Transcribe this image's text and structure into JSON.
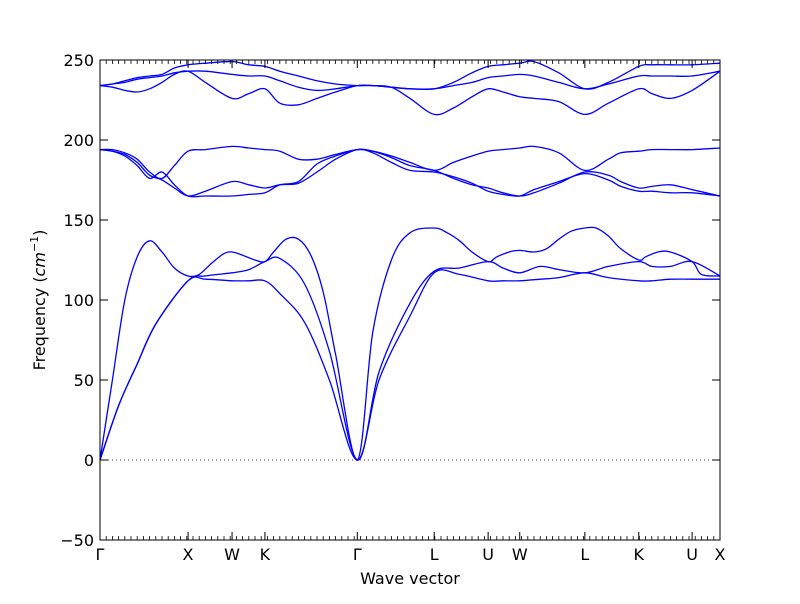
{
  "chart_data": {
    "type": "line",
    "title": "",
    "xlabel": "Wave vector",
    "ylabel": "Frequency",
    "ylabel_unit": "cm",
    "ylabel_unit_exp": "−1",
    "ylim": [
      -50,
      250
    ],
    "yticks": [
      -50,
      0,
      50,
      100,
      150,
      200,
      250
    ],
    "xlim": [
      0,
      100
    ],
    "xticks": [
      {
        "label": "Γ",
        "x": 0
      },
      {
        "label": "X",
        "x": 14.2
      },
      {
        "label": "W",
        "x": 21.3
      },
      {
        "label": "K",
        "x": 26.6
      },
      {
        "label": "Γ",
        "x": 41.5
      },
      {
        "label": "L",
        "x": 53.9
      },
      {
        "label": "U",
        "x": 62.6
      },
      {
        "label": "W",
        "x": 67.7
      },
      {
        "label": "L",
        "x": 78.2
      },
      {
        "label": "K",
        "x": 86.9
      },
      {
        "label": "U",
        "x": 95.5
      },
      {
        "label": "X",
        "x": 100
      }
    ],
    "grid": false,
    "zero_line": "dotted",
    "line_color": "#0000ff",
    "series": [
      {
        "x": [
          0,
          3,
          6,
          9,
          14.2,
          17,
          21.3,
          24,
          26.6,
          29,
          33,
          37,
          41.5,
          45,
          50,
          53.9,
          58,
          62.6,
          65,
          67.7,
          71,
          74,
          78.2,
          82,
          86.9,
          89,
          92,
          95.5,
          100
        ],
        "y": [
          0,
          34,
          60,
          85,
          112,
          113,
          112,
          112,
          112,
          104,
          86,
          50,
          0,
          50,
          90,
          117,
          116,
          112,
          112,
          112,
          113,
          114,
          117,
          114,
          112,
          112,
          113,
          113,
          113
        ]
      },
      {
        "x": [
          0,
          3,
          6,
          9,
          14.2,
          17,
          21.3,
          24,
          26.6,
          29,
          33,
          37,
          41.5,
          45,
          50,
          53.9,
          58,
          62.6,
          65,
          67.7,
          71,
          74,
          78.2,
          82,
          86.9,
          89,
          92,
          95.5,
          100
        ],
        "y": [
          0,
          34,
          60,
          85,
          112,
          115,
          117,
          119,
          124,
          126,
          110,
          68,
          0,
          55,
          98,
          118,
          120,
          124,
          120,
          117,
          121,
          119,
          117,
          121,
          124,
          121,
          121,
          124,
          115
        ]
      },
      {
        "x": [
          0,
          2,
          4,
          6,
          8,
          10,
          12,
          14.2,
          16,
          18,
          20,
          21.3,
          23,
          25,
          26.6,
          28,
          30,
          32,
          34,
          36,
          38,
          41.5,
          44,
          47,
          50,
          53.9,
          56,
          58,
          60,
          62.6,
          64,
          66,
          67.7,
          70,
          72,
          74,
          76,
          78.2,
          80,
          82,
          84,
          86.9,
          88,
          90,
          92,
          95.5,
          97,
          100
        ],
        "y": [
          0,
          50,
          100,
          127,
          137,
          130,
          120,
          115,
          116,
          123,
          129,
          130,
          128,
          125,
          124,
          130,
          138,
          138,
          128,
          105,
          66,
          0,
          80,
          125,
          142,
          145,
          142,
          137,
          130,
          124,
          127,
          130,
          131,
          130,
          132,
          138,
          143,
          145,
          145,
          140,
          132,
          125,
          127,
          130,
          130,
          124,
          116,
          115
        ]
      },
      {
        "x": [
          0,
          2,
          4,
          6,
          8,
          10,
          12,
          14.2,
          17,
          21.3,
          24,
          26.6,
          29,
          32,
          35,
          38,
          41.5,
          44,
          47,
          50,
          53.9,
          57,
          60,
          62.6,
          65,
          67.7,
          70,
          74,
          78.2,
          82,
          84,
          86.9,
          89,
          92,
          95.5,
          100
        ],
        "y": [
          194,
          193,
          190,
          184,
          176,
          180,
          172,
          165,
          165,
          165,
          166,
          167,
          172,
          174,
          185,
          190,
          194,
          193,
          189,
          184,
          181,
          176,
          172,
          170,
          167,
          165,
          167,
          173,
          180,
          178,
          174,
          170,
          171,
          172,
          169,
          165
        ]
      },
      {
        "x": [
          0,
          2,
          4,
          6,
          8,
          10,
          12,
          14.2,
          17,
          21.3,
          24,
          26.6,
          29,
          32,
          35,
          38,
          41.5,
          44,
          47,
          50,
          53.9,
          57,
          60,
          62.6,
          65,
          67.7,
          70,
          74,
          78.2,
          82,
          84,
          86.9,
          89,
          92,
          95.5,
          100
        ],
        "y": [
          194,
          193,
          191,
          186,
          178,
          175,
          170,
          165,
          168,
          174,
          172,
          170,
          172,
          173,
          180,
          188,
          194,
          192,
          186,
          181,
          180,
          177,
          173,
          168,
          166,
          165,
          169,
          174,
          179,
          175,
          171,
          168,
          168,
          167,
          167,
          165
        ]
      },
      {
        "x": [
          0,
          2,
          4,
          6,
          8,
          10,
          12,
          14.2,
          17,
          21.3,
          24,
          26.6,
          29,
          32,
          35,
          38,
          41.5,
          44,
          47,
          50,
          53.9,
          57,
          60,
          62.6,
          65,
          67.7,
          70,
          74,
          78.2,
          82,
          84,
          86.9,
          89,
          92,
          95.5,
          100
        ],
        "y": [
          194,
          194,
          192,
          188,
          180,
          176,
          184,
          193,
          194,
          196,
          195,
          194,
          193,
          188,
          188,
          191,
          194,
          193,
          190,
          186,
          181,
          186,
          190,
          193,
          194,
          195,
          196,
          192,
          181,
          188,
          192,
          193,
          194,
          194,
          194,
          195
        ]
      },
      {
        "x": [
          0,
          2,
          4,
          6,
          8,
          10,
          12,
          14.2,
          17,
          21.3,
          24,
          26.6,
          29,
          32,
          35,
          38,
          41.5,
          44,
          47,
          50,
          53.9,
          57,
          60,
          62.6,
          65,
          67.7,
          70,
          74,
          78.2,
          82,
          86.9,
          89,
          92,
          95.5,
          100
        ],
        "y": [
          234,
          233,
          231,
          230,
          232,
          236,
          241,
          243,
          236,
          226,
          229,
          232,
          223,
          222,
          226,
          230,
          234,
          234,
          233,
          226,
          216,
          220,
          227,
          232,
          230,
          227,
          226,
          224,
          216,
          223,
          232,
          229,
          226,
          231,
          243
        ]
      },
      {
        "x": [
          0,
          2,
          4,
          6,
          8,
          10,
          12,
          14.2,
          17,
          21.3,
          24,
          26.6,
          29,
          32,
          35,
          38,
          41.5,
          44,
          47,
          50,
          53.9,
          57,
          60,
          62.6,
          65,
          67.7,
          70,
          74,
          78.2,
          82,
          86.9,
          89,
          92,
          95.5,
          100
        ],
        "y": [
          234,
          235,
          236,
          238,
          239,
          240,
          242,
          243,
          243,
          241,
          240,
          240,
          237,
          233,
          231,
          232,
          234,
          234,
          233,
          232,
          232,
          234,
          236,
          239,
          240,
          241,
          240,
          236,
          232,
          235,
          240,
          240,
          240,
          240,
          243
        ]
      },
      {
        "x": [
          0,
          2,
          4,
          6,
          8,
          10,
          12,
          14.2,
          17,
          21.3,
          24,
          26.6,
          29,
          32,
          35,
          38,
          41.5,
          44,
          47,
          50,
          53.9,
          57,
          60,
          62.6,
          65,
          67.7,
          70,
          74,
          78.2,
          82,
          86.9,
          89,
          92,
          95.5,
          100
        ],
        "y": [
          234,
          235,
          237,
          239,
          240,
          241,
          245,
          247,
          248,
          249,
          247,
          246,
          243,
          240,
          237,
          235,
          234,
          234,
          233,
          232,
          232,
          236,
          242,
          246,
          247,
          248,
          249,
          242,
          232,
          236,
          246,
          247,
          247,
          247,
          248
        ]
      }
    ]
  }
}
